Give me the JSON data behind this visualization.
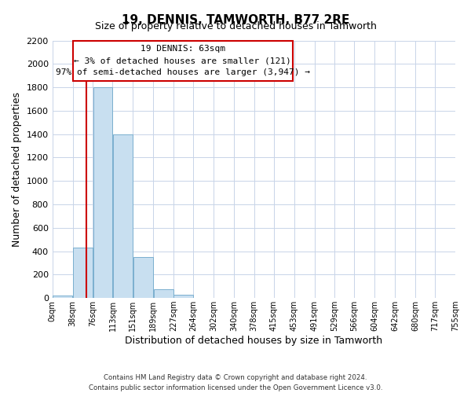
{
  "title": "19, DENNIS, TAMWORTH, B77 2RE",
  "subtitle": "Size of property relative to detached houses in Tamworth",
  "xlabel": "Distribution of detached houses by size in Tamworth",
  "ylabel": "Number of detached properties",
  "bar_left_edges": [
    0,
    38,
    76,
    113,
    151,
    189,
    227,
    264,
    302,
    340,
    378,
    415,
    453,
    491,
    529,
    566,
    604,
    642,
    680,
    717
  ],
  "bar_widths": [
    38,
    38,
    37,
    38,
    38,
    38,
    37,
    38,
    38,
    38,
    37,
    38,
    38,
    38,
    37,
    38,
    38,
    38,
    37,
    38
  ],
  "bar_heights": [
    20,
    430,
    1800,
    1400,
    350,
    75,
    25,
    0,
    0,
    0,
    0,
    0,
    0,
    0,
    0,
    0,
    0,
    0,
    0,
    0
  ],
  "bar_color": "#c8dff0",
  "bar_edge_color": "#7aafcf",
  "xtick_labels": [
    "0sqm",
    "38sqm",
    "76sqm",
    "113sqm",
    "151sqm",
    "189sqm",
    "227sqm",
    "264sqm",
    "302sqm",
    "340sqm",
    "378sqm",
    "415sqm",
    "453sqm",
    "491sqm",
    "529sqm",
    "566sqm",
    "604sqm",
    "642sqm",
    "680sqm",
    "717sqm",
    "755sqm"
  ],
  "ylim": [
    0,
    2200
  ],
  "yticks": [
    0,
    200,
    400,
    600,
    800,
    1000,
    1200,
    1400,
    1600,
    1800,
    2000,
    2200
  ],
  "vline_x": 63,
  "vline_color": "#cc0000",
  "annotation_line1": "19 DENNIS: 63sqm",
  "annotation_line2": "← 3% of detached houses are smaller (121)",
  "annotation_line3": "97% of semi-detached houses are larger (3,947) →",
  "annotation_box_edgecolor": "#cc0000",
  "footer_line1": "Contains HM Land Registry data © Crown copyright and database right 2024.",
  "footer_line2": "Contains public sector information licensed under the Open Government Licence v3.0.",
  "background_color": "#ffffff",
  "grid_color": "#c8d4e8"
}
